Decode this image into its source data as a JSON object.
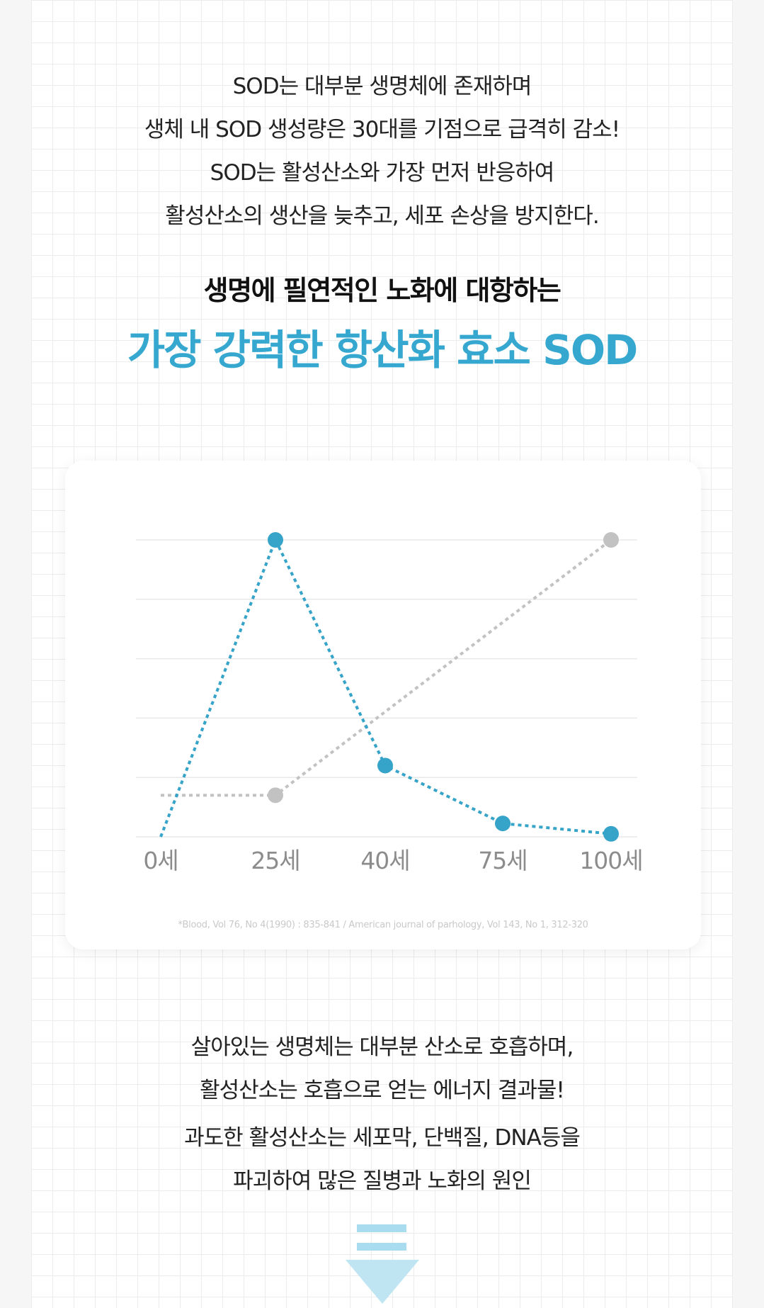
{
  "intro": {
    "lines": [
      "SOD는 대부분 생명체에 존재하며",
      "생체 내 SOD 생성량은 30대를 기점으로 급격히 감소!",
      "SOD는 활성산소와 가장 먼저 반응하여",
      "활성산소의 생산을 늦추고, 세포 손상을 방지한다."
    ]
  },
  "headline": "생명에 필연적인 노화에 대항하는",
  "highlight": "가장 강력한 항산화 효소 SOD",
  "chart_data": {
    "type": "line",
    "categories": [
      "0세",
      "25세",
      "40세",
      "75세",
      "100세"
    ],
    "x": [
      0,
      25,
      40,
      75,
      100
    ],
    "series": [
      {
        "color": "#36a3c8",
        "values": [
          0,
          100,
          24,
          4.5,
          1
        ]
      },
      {
        "color": "#c2c2c2",
        "values": [
          14,
          14,
          null,
          null,
          100
        ]
      }
    ],
    "ylim": [
      0,
      100
    ],
    "title": "",
    "xlabel": "",
    "ylabel": "",
    "grid": true,
    "legend": "none",
    "source": "*Blood, Vol 76, No 4(1990) : 835-841 / American journal of parhology, Vol 143, No 1, 312-320"
  },
  "outro": {
    "lines": [
      "살아있는 생명체는 대부분 산소로 호흡하며,",
      "활성산소는 호흡으로 얻는 에너지 결과물!",
      "과도한 활성산소는 세포막, 단백질, DNA등을",
      "파괴하여 많은 질병과 노화의 원인"
    ]
  },
  "colors": {
    "accent": "#36a8d0",
    "arrow": "#bfe5f3",
    "arrow_bar": "#a9dcee"
  },
  "icons": {
    "arrow": "down-arrow-icon"
  }
}
